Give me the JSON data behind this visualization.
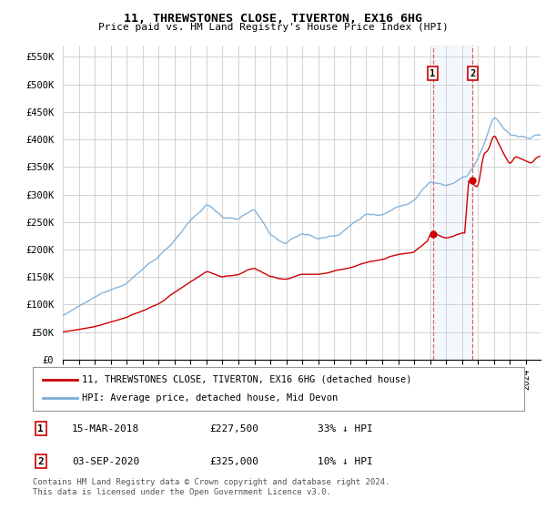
{
  "title": "11, THREWSTONES CLOSE, TIVERTON, EX16 6HG",
  "subtitle": "Price paid vs. HM Land Registry's House Price Index (HPI)",
  "ylabel_ticks": [
    "£0",
    "£50K",
    "£100K",
    "£150K",
    "£200K",
    "£250K",
    "£300K",
    "£350K",
    "£400K",
    "£450K",
    "£500K",
    "£550K"
  ],
  "ytick_vals": [
    0,
    50000,
    100000,
    150000,
    200000,
    250000,
    300000,
    350000,
    400000,
    450000,
    500000,
    550000
  ],
  "hpi_color": "#7aacd6",
  "price_color": "#cc0000",
  "marker1_price": 227500,
  "marker1_date_str": "15-MAR-2018",
  "marker1_pct": "33% ↓ HPI",
  "marker2_price": 325000,
  "marker2_date_str": "03-SEP-2020",
  "marker2_pct": "10% ↓ HPI",
  "legend_label_price": "11, THREWSTONES CLOSE, TIVERTON, EX16 6HG (detached house)",
  "legend_label_hpi": "HPI: Average price, detached house, Mid Devon",
  "footer": "Contains HM Land Registry data © Crown copyright and database right 2024.\nThis data is licensed under the Open Government Licence v3.0.",
  "xstart_year": 1995,
  "xend_year": 2025
}
